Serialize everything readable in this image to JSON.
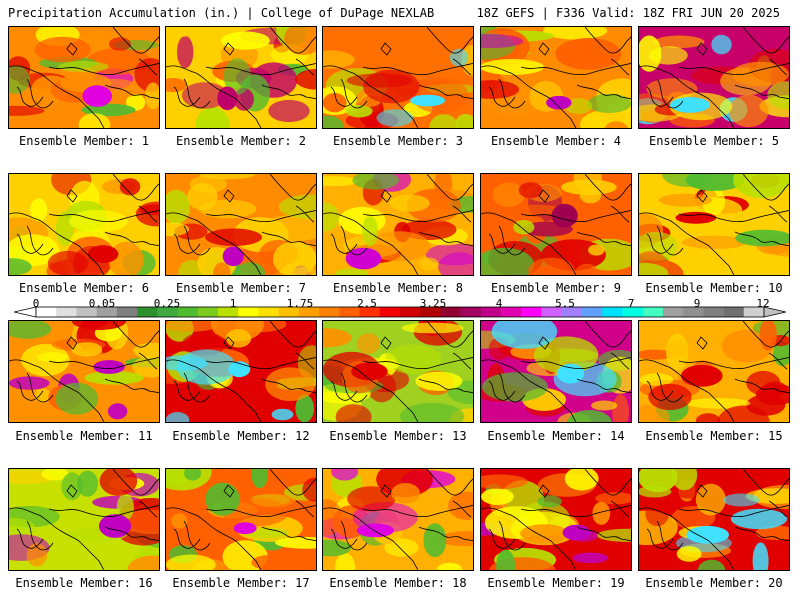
{
  "header": {
    "left": "Precipitation Accumulation (in.) | College of DuPage NEXLAB",
    "right": "18Z GEFS | F336 Valid: 18Z FRI JUN 20 2025"
  },
  "member_label_prefix": "Ensemble Member: ",
  "members": [
    {
      "number": 1,
      "label": "Ensemble Member: 1",
      "dominant_color": "#ff8c00",
      "hotspot_color": "#e000e0"
    },
    {
      "number": 2,
      "label": "Ensemble Member: 2",
      "dominant_color": "#ffd000",
      "hotspot_color": "#c0006a"
    },
    {
      "number": 3,
      "label": "Ensemble Member: 3",
      "dominant_color": "#ff7000",
      "hotspot_color": "#40e0ff"
    },
    {
      "number": 4,
      "label": "Ensemble Member: 4",
      "dominant_color": "#ff8c00",
      "hotspot_color": "#c000c0"
    },
    {
      "number": 5,
      "label": "Ensemble Member: 5",
      "dominant_color": "#c8006a",
      "hotspot_color": "#40e0ff"
    },
    {
      "number": 6,
      "label": "Ensemble Member: 6",
      "dominant_color": "#ffd000",
      "hotspot_color": "#e00000"
    },
    {
      "number": 7,
      "label": "Ensemble Member: 7",
      "dominant_color": "#ff8c00",
      "hotspot_color": "#c000c0"
    },
    {
      "number": 8,
      "label": "Ensemble Member: 8",
      "dominant_color": "#ffb000",
      "hotspot_color": "#d000d0"
    },
    {
      "number": 9,
      "label": "Ensemble Member: 9",
      "dominant_color": "#ff6000",
      "hotspot_color": "#a00050"
    },
    {
      "number": 10,
      "label": "Ensemble Member: 10",
      "dominant_color": "#ffd000",
      "hotspot_color": "#e00000"
    },
    {
      "number": 11,
      "label": "Ensemble Member: 11",
      "dominant_color": "#ff9000",
      "hotspot_color": "#c000c0"
    },
    {
      "number": 12,
      "label": "Ensemble Member: 12",
      "dominant_color": "#e00000",
      "hotspot_color": "#40e0ff"
    },
    {
      "number": 13,
      "label": "Ensemble Member: 13",
      "dominant_color": "#a0d020",
      "hotspot_color": "#e00000"
    },
    {
      "number": 14,
      "label": "Ensemble Member: 14",
      "dominant_color": "#d0008a",
      "hotspot_color": "#40e0ff"
    },
    {
      "number": 15,
      "label": "Ensemble Member: 15",
      "dominant_color": "#ffb000",
      "hotspot_color": "#e00000"
    },
    {
      "number": 16,
      "label": "Ensemble Member: 16",
      "dominant_color": "#c8e000",
      "hotspot_color": "#c000c0"
    },
    {
      "number": 17,
      "label": "Ensemble Member: 17",
      "dominant_color": "#ff6000",
      "hotspot_color": "#e000e0"
    },
    {
      "number": 18,
      "label": "Ensemble Member: 18",
      "dominant_color": "#ffb000",
      "hotspot_color": "#e000e0"
    },
    {
      "number": 19,
      "label": "Ensemble Member: 19",
      "dominant_color": "#e00000",
      "hotspot_color": "#c000c0"
    },
    {
      "number": 20,
      "label": "Ensemble Member: 20",
      "dominant_color": "#e00000",
      "hotspot_color": "#40e0ff"
    }
  ],
  "colorbar": {
    "unit": "in.",
    "tick_labels": [
      "0",
      "0.05",
      "0.25",
      "1",
      "1.75",
      "2.5",
      "3.25",
      "4",
      "5.5",
      "7",
      "9",
      "12"
    ],
    "colors": [
      "#ffffff",
      "#e0e0e0",
      "#c0c0c0",
      "#a0a0a0",
      "#808080",
      "#2f8f2f",
      "#3fa83f",
      "#50bb30",
      "#7ccc20",
      "#b8e000",
      "#ffff00",
      "#ffe000",
      "#ffc000",
      "#ffa000",
      "#ff8000",
      "#ff6000",
      "#ff3000",
      "#f00000",
      "#d00000",
      "#b00000",
      "#900030",
      "#a00060",
      "#c0008a",
      "#e000b0",
      "#ff00ff",
      "#d060ff",
      "#a080ff",
      "#60a0ff",
      "#00e0ff",
      "#00ffe0",
      "#40ffc0",
      "#a0a0a0",
      "#909090",
      "#808080",
      "#707070",
      "#d0d0d0"
    ]
  }
}
